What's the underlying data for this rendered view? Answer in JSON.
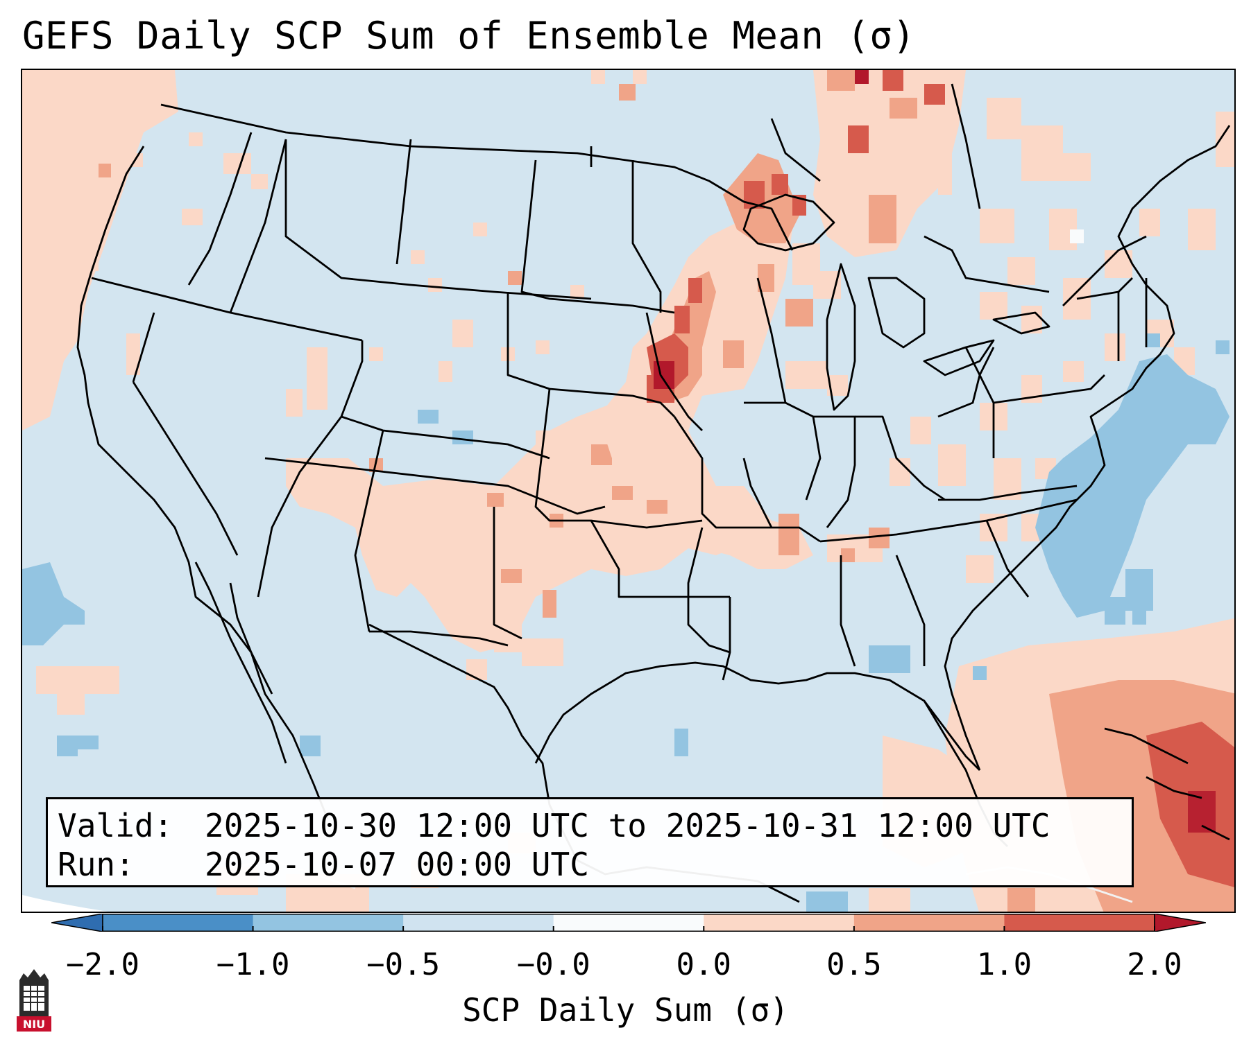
{
  "title": "GEFS Daily SCP Sum of Ensemble Mean (σ)",
  "info": {
    "valid_label": "Valid:",
    "valid_value": "2025-10-30 12:00 UTC to 2025-10-31 12:00 UTC",
    "run_label": "Run:",
    "run_value": "2025-10-07 00:00 UTC"
  },
  "colorbar": {
    "label": "SCP Daily Sum (σ)",
    "ticks": [
      "−2.0",
      "−1.0",
      "−0.5",
      "−0.0",
      "0.0",
      "0.5",
      "1.0",
      "2.0"
    ],
    "colors": [
      "#4a8fc7",
      "#93c4e1",
      "#d0e3f0",
      "#f9fbfc",
      "#fbd8c7",
      "#f0a488",
      "#d65a4c"
    ],
    "extend_low_color": "#2f6db0",
    "extend_high_color": "#b2182b"
  },
  "logo": {
    "text": "NIU",
    "icon": "niu-tower-logo"
  }
}
